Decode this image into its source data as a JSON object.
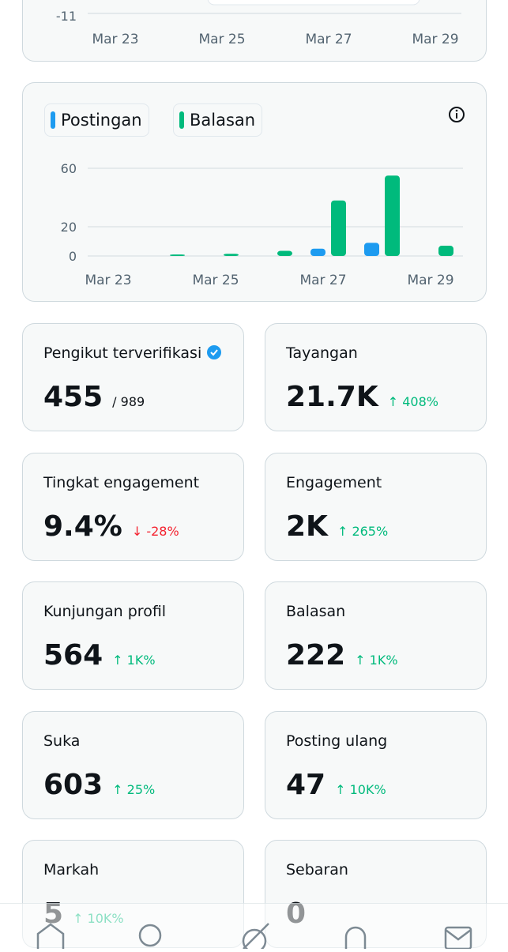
{
  "top_chart": {
    "yticks": [
      -11
    ],
    "categories": [
      "Mar 23",
      "Mar 25",
      "Mar 27",
      "Mar 29"
    ]
  },
  "chart_data": {
    "type": "bar",
    "categories": [
      "Mar 23",
      null,
      "Mar 25",
      null,
      "Mar 27",
      null,
      "Mar 29"
    ],
    "series": [
      {
        "name": "Postingan",
        "color": "#1d9bf0",
        "values": [
          0,
          0,
          0,
          0,
          5,
          9,
          0
        ]
      },
      {
        "name": "Balasan",
        "color": "#00ba7c",
        "values": [
          0,
          1,
          1.5,
          3.5,
          38,
          55,
          7
        ]
      }
    ],
    "ylim": [
      0,
      60
    ],
    "yticks": [
      0,
      20,
      60
    ],
    "grid": true
  },
  "stats": [
    {
      "title": "Pengikut terverifikasi",
      "value": "455",
      "secondary": "/ 989"
    },
    {
      "title": "Tayangan",
      "value": "21.7K",
      "change": "↑ 408%",
      "direction": "up"
    },
    {
      "title": "Tingkat engagement",
      "value": "9.4%",
      "change": "↓ -28%",
      "direction": "down"
    },
    {
      "title": "Engagement",
      "value": "2K",
      "change": "↑ 265%",
      "direction": "up"
    },
    {
      "title": "Kunjungan profil",
      "value": "564",
      "change": "↑ 1K%",
      "direction": "up"
    },
    {
      "title": "Balasan",
      "value": "222",
      "change": "↑ 1K%",
      "direction": "up"
    },
    {
      "title": "Suka",
      "value": "603",
      "change": "↑ 25%",
      "direction": "up"
    },
    {
      "title": "Posting ulang",
      "value": "47",
      "change": "↑ 10K%",
      "direction": "up"
    },
    {
      "title": "Markah",
      "value": "5",
      "change": "↑ 10K%",
      "direction": "up"
    },
    {
      "title": "Sebaran",
      "value": "0"
    }
  ]
}
